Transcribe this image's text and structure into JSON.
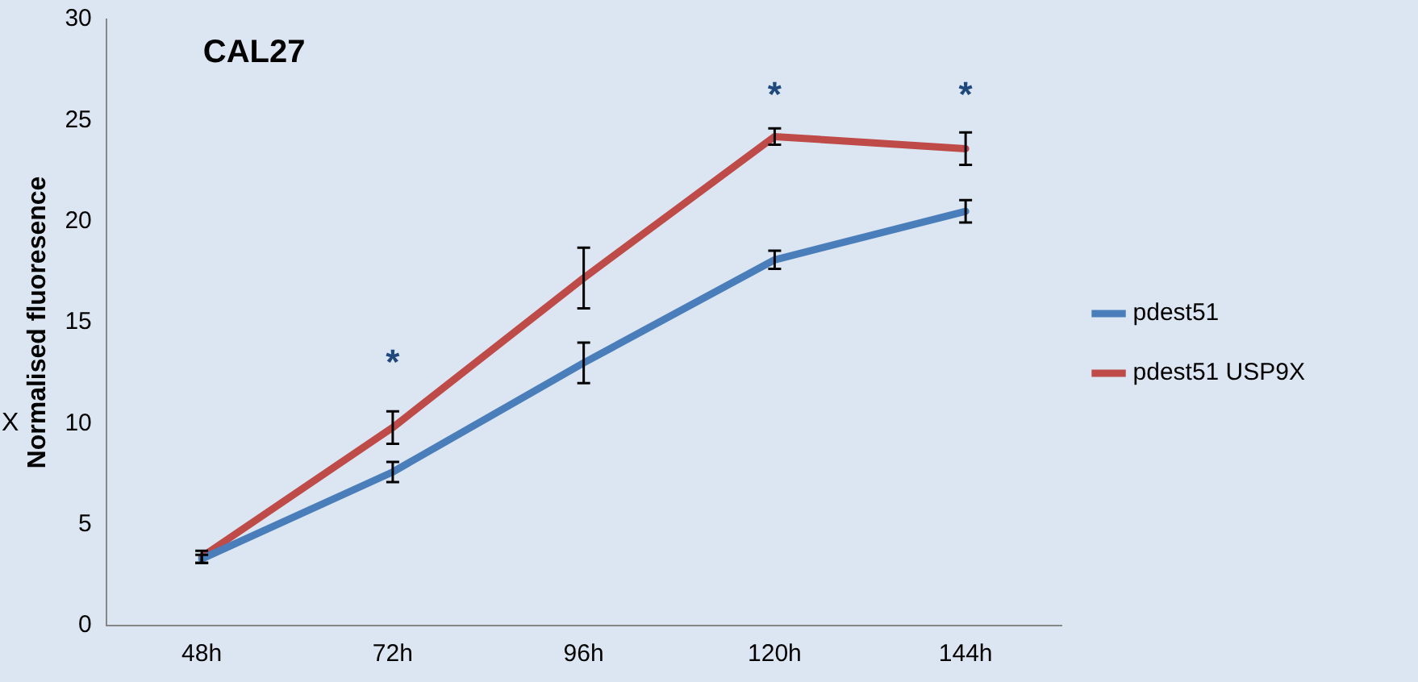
{
  "chart_data": {
    "type": "line",
    "title": "CAL27",
    "ylabel": "Normalised fluoresence",
    "categories": [
      "48h",
      "72h",
      "96h",
      "120h",
      "144h"
    ],
    "series": [
      {
        "name": "pdest51",
        "color": "#4a7ebb",
        "values": [
          3.3,
          7.6,
          13.0,
          18.1,
          20.5
        ],
        "errors": [
          0.2,
          0.5,
          1.0,
          0.45,
          0.55
        ]
      },
      {
        "name": "pdest51 USP9X",
        "color": "#be4b48",
        "values": [
          3.4,
          9.8,
          17.2,
          24.2,
          23.6
        ],
        "errors": [
          0.3,
          0.8,
          1.5,
          0.4,
          0.8
        ]
      }
    ],
    "ylim": [
      0,
      30
    ],
    "yticks": [
      0,
      5,
      10,
      15,
      20,
      25,
      30
    ],
    "grid": false,
    "legend": "right",
    "line_style": "solid",
    "annotations": [
      "*",
      "*",
      "*",
      "X"
    ]
  }
}
